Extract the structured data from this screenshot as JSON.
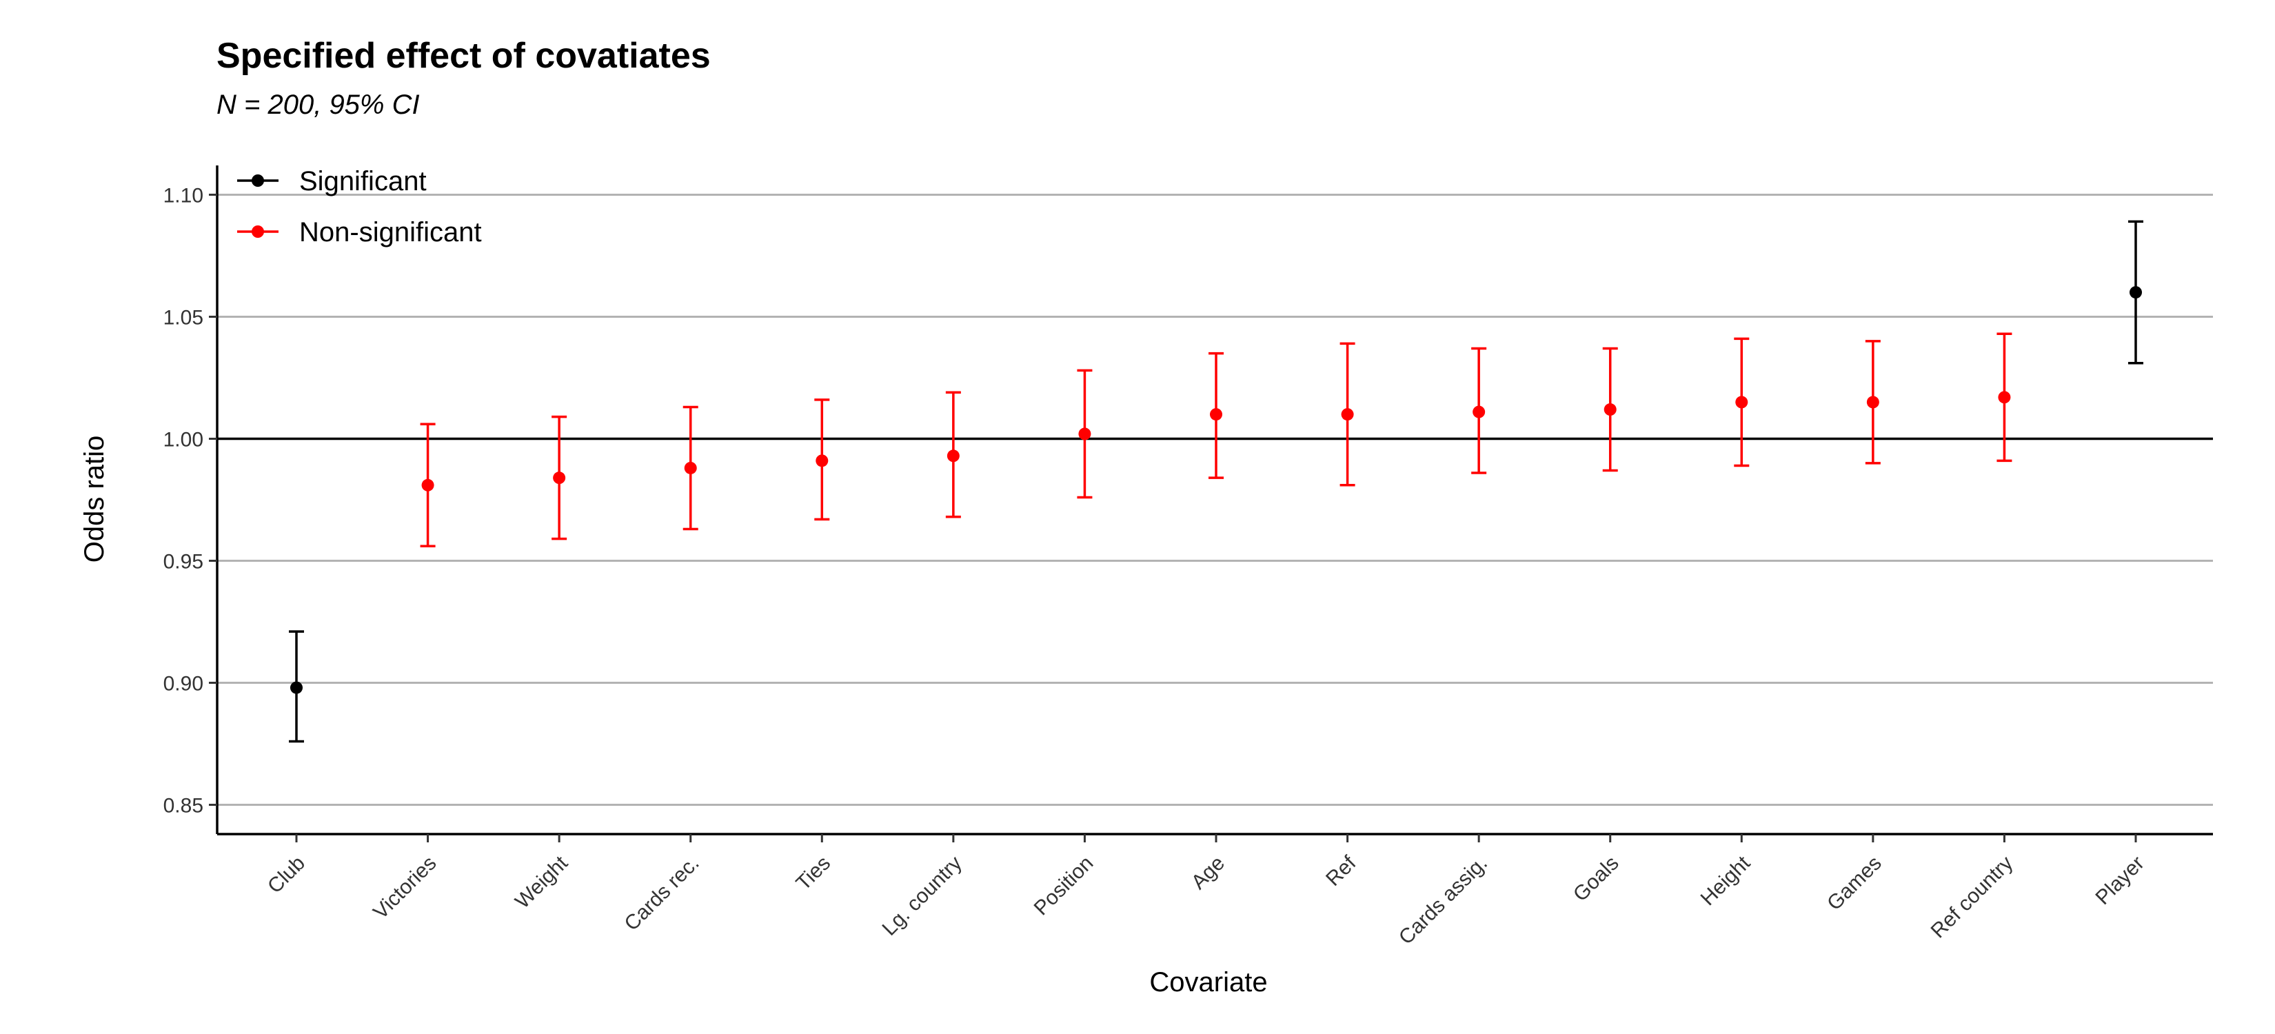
{
  "chart_data": {
    "type": "scatter",
    "title": "Specified effect of covatiates",
    "subtitle": "N = 200, 95% CI",
    "xlabel": "Covariate",
    "ylabel": "Odds ratio",
    "ylim": [
      0.838,
      1.112
    ],
    "yticks": [
      0.85,
      0.9,
      0.95,
      1.0,
      1.05,
      1.1
    ],
    "ytick_labels": [
      "0.85",
      "0.90",
      "0.95",
      "1.00",
      "1.05",
      "1.10"
    ],
    "reference_line": 1.0,
    "grid": "horizontal",
    "legend_position": "top-left",
    "legend": [
      {
        "name": "Significant",
        "color": "#000000"
      },
      {
        "name": "Non-significant",
        "color": "#ff0000"
      }
    ],
    "categories": [
      "Club",
      "Victories",
      "Weight",
      "Cards rec.",
      "Ties",
      "Lg. country",
      "Position",
      "Age",
      "Ref",
      "Cards assig.",
      "Goals",
      "Height",
      "Games",
      "Ref country",
      "Player"
    ],
    "points": [
      {
        "label": "Club",
        "estimate": 0.898,
        "lower": 0.876,
        "upper": 0.921,
        "group": "Significant"
      },
      {
        "label": "Victories",
        "estimate": 0.981,
        "lower": 0.956,
        "upper": 1.006,
        "group": "Non-significant"
      },
      {
        "label": "Weight",
        "estimate": 0.984,
        "lower": 0.959,
        "upper": 1.009,
        "group": "Non-significant"
      },
      {
        "label": "Cards rec.",
        "estimate": 0.988,
        "lower": 0.963,
        "upper": 1.013,
        "group": "Non-significant"
      },
      {
        "label": "Ties",
        "estimate": 0.991,
        "lower": 0.967,
        "upper": 1.016,
        "group": "Non-significant"
      },
      {
        "label": "Lg. country",
        "estimate": 0.993,
        "lower": 0.968,
        "upper": 1.019,
        "group": "Non-significant"
      },
      {
        "label": "Position",
        "estimate": 1.002,
        "lower": 0.976,
        "upper": 1.028,
        "group": "Non-significant"
      },
      {
        "label": "Age",
        "estimate": 1.01,
        "lower": 0.984,
        "upper": 1.035,
        "group": "Non-significant"
      },
      {
        "label": "Ref",
        "estimate": 1.01,
        "lower": 0.981,
        "upper": 1.039,
        "group": "Non-significant"
      },
      {
        "label": "Cards assig.",
        "estimate": 1.011,
        "lower": 0.986,
        "upper": 1.037,
        "group": "Non-significant"
      },
      {
        "label": "Goals",
        "estimate": 1.012,
        "lower": 0.987,
        "upper": 1.037,
        "group": "Non-significant"
      },
      {
        "label": "Height",
        "estimate": 1.015,
        "lower": 0.989,
        "upper": 1.041,
        "group": "Non-significant"
      },
      {
        "label": "Games",
        "estimate": 1.015,
        "lower": 0.99,
        "upper": 1.04,
        "group": "Non-significant"
      },
      {
        "label": "Ref country",
        "estimate": 1.017,
        "lower": 0.991,
        "upper": 1.043,
        "group": "Non-significant"
      },
      {
        "label": "Player",
        "estimate": 1.06,
        "lower": 1.031,
        "upper": 1.089,
        "group": "Significant"
      }
    ]
  }
}
